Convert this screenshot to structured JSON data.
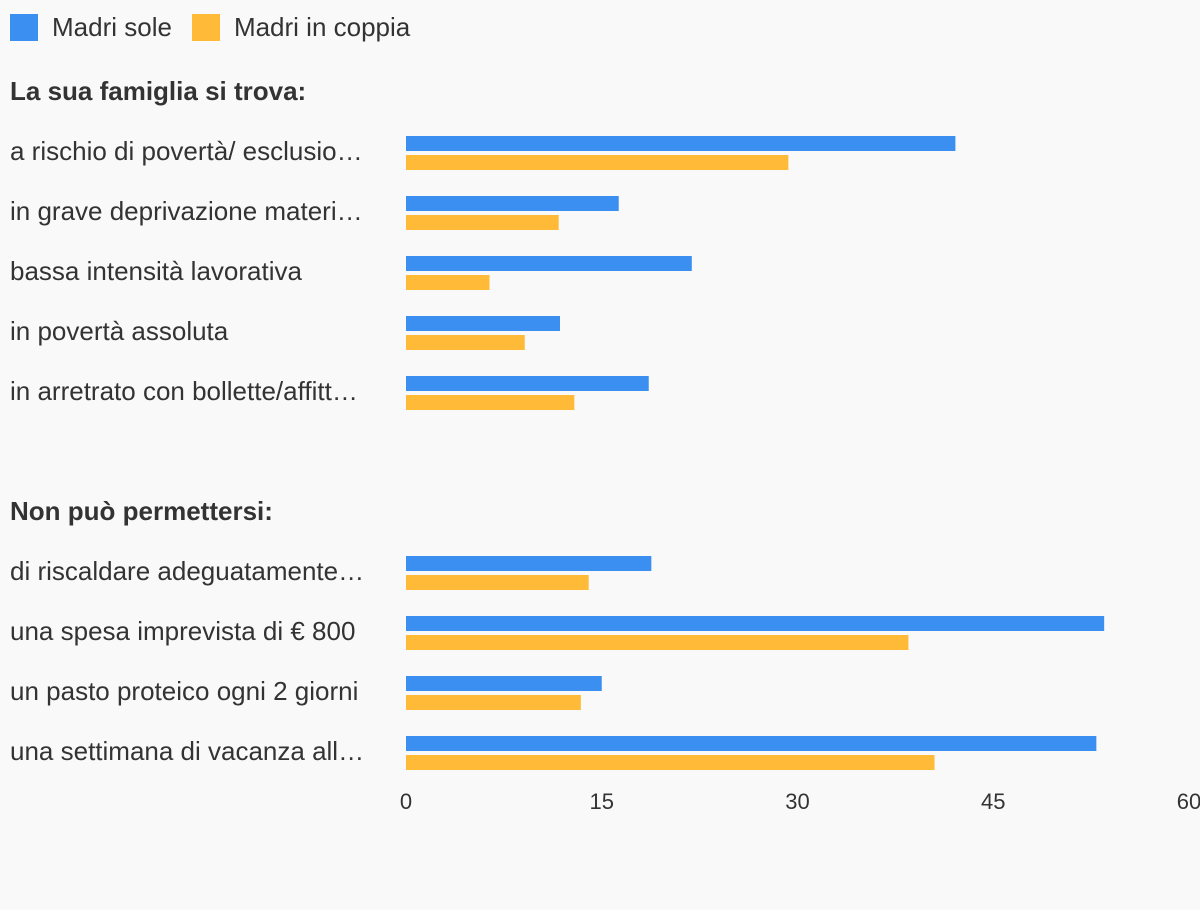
{
  "legend": {
    "series_1": "Madri sole",
    "series_2": "Madri in coppia"
  },
  "colors": {
    "series_1": "#3a8ff0",
    "series_2": "#ffbb38",
    "text": "#333333",
    "background": "#f9f9f9"
  },
  "chart_data": {
    "type": "bar",
    "orientation": "horizontal",
    "xlim": [
      0,
      60
    ],
    "x_ticks": [
      "0",
      "15",
      "30",
      "45",
      "60"
    ],
    "grid": false,
    "legend_position": "top-left",
    "series": [
      {
        "name": "Madri sole",
        "color": "#3a8ff0"
      },
      {
        "name": "Madri in coppia",
        "color": "#ffbb38"
      }
    ],
    "groups": [
      {
        "title": "La sua famiglia si trova:",
        "categories": [
          {
            "label": "a rischio di povertà/ esclusio…",
            "values": [
              42.1,
              29.3
            ]
          },
          {
            "label": "in grave deprivazione materi…",
            "values": [
              16.3,
              11.7
            ]
          },
          {
            "label": "bassa intensità lavorativa",
            "values": [
              21.9,
              6.4
            ]
          },
          {
            "label": "in povertà assoluta",
            "values": [
              11.8,
              9.1
            ]
          },
          {
            "label": "in arretrato con bollette/affitt…",
            "values": [
              18.6,
              12.9
            ]
          }
        ]
      },
      {
        "title": "Non può permettersi:",
        "categories": [
          {
            "label": "di riscaldare adeguatamente…",
            "values": [
              18.8,
              14.0
            ]
          },
          {
            "label": "una spesa imprevista di € 800",
            "values": [
              53.5,
              38.5
            ]
          },
          {
            "label": "un pasto proteico ogni 2 giorni",
            "values": [
              15.0,
              13.4
            ]
          },
          {
            "label": "una settimana di vacanza all…",
            "values": [
              52.9,
              40.5
            ]
          }
        ]
      }
    ]
  }
}
